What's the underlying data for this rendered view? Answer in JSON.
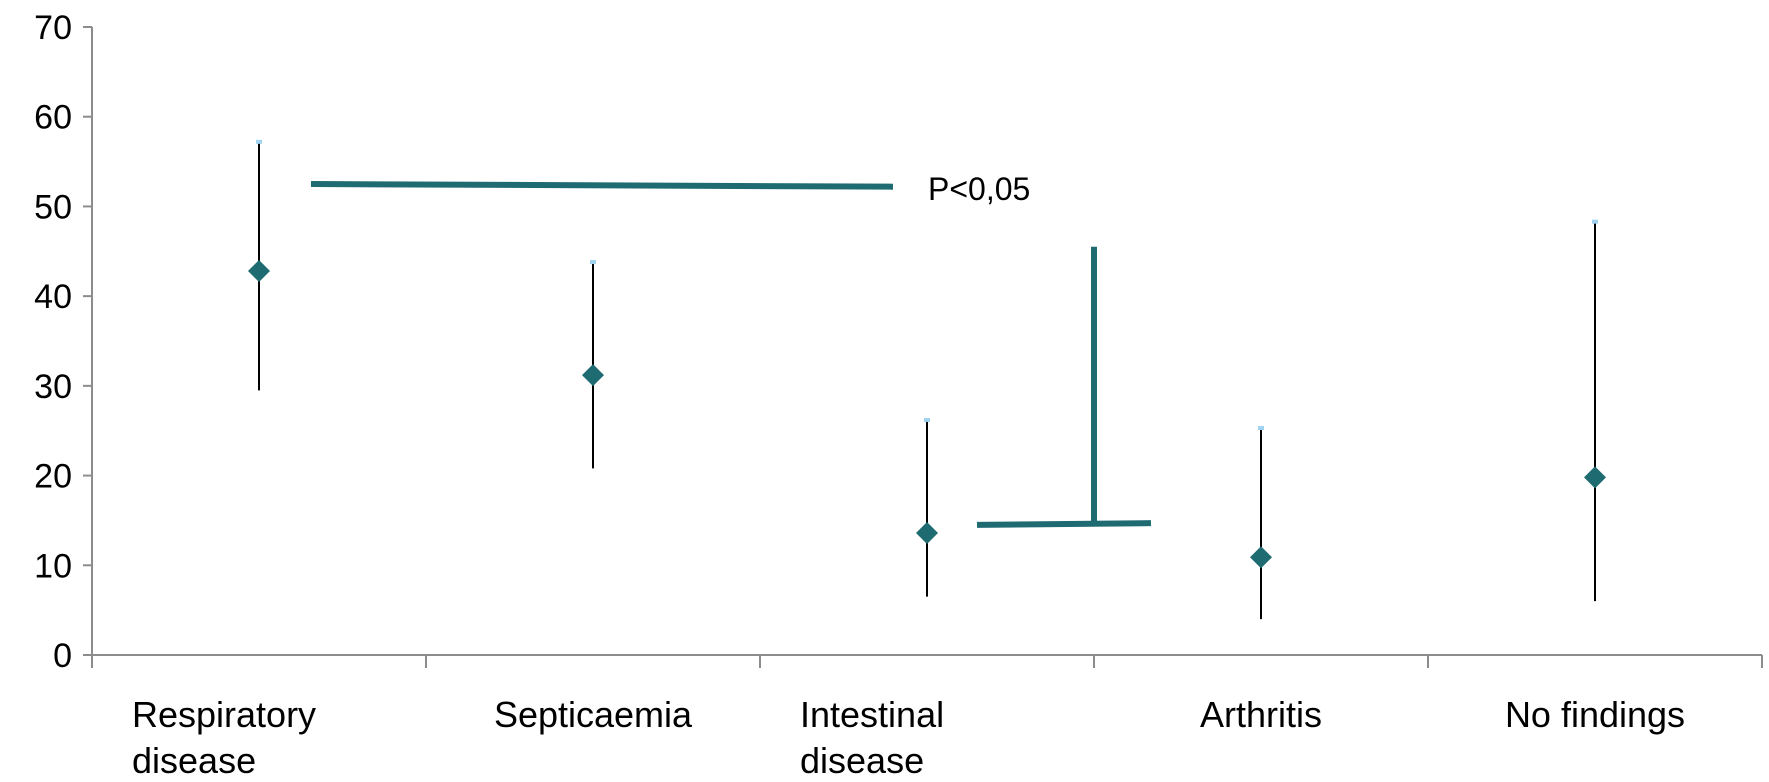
{
  "chart_data": {
    "type": "scatter",
    "title": "",
    "xlabel": "",
    "ylabel": "",
    "ylim": [
      0,
      70
    ],
    "yticks": [
      "0",
      "10",
      "20",
      "30",
      "40",
      "50",
      "60",
      "70"
    ],
    "categories": [
      [
        "Respiratory",
        "disease"
      ],
      [
        "Septicaemia"
      ],
      [
        "Intestinal",
        "disease"
      ],
      [
        "Arthritis"
      ],
      [
        "No findings"
      ]
    ],
    "points": [
      {
        "value": 42.8,
        "lower": 29.5,
        "upper": 57.2
      },
      {
        "value": 31.2,
        "lower": 20.8,
        "upper": 43.8
      },
      {
        "value": 13.6,
        "lower": 6.5,
        "upper": 26.2
      },
      {
        "value": 10.9,
        "lower": 4.0,
        "upper": 25.3
      },
      {
        "value": 19.8,
        "lower": 6.0,
        "upper": 48.3
      }
    ],
    "annotation": "P<0,05",
    "colors": {
      "marker": "#1f6b72",
      "bracket": "#1f6b72",
      "errorbar": "#000000",
      "cap": "#9fd3ef",
      "axis": "#8c8c8c"
    }
  }
}
